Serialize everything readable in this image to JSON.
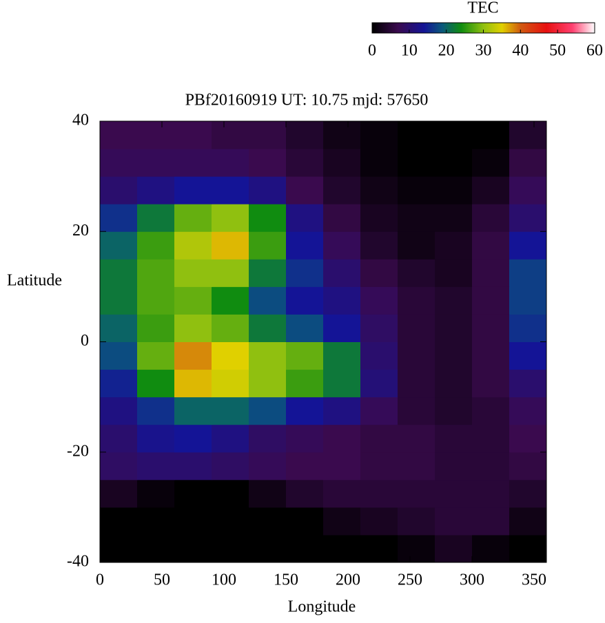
{
  "chart_data": {
    "type": "heatmap",
    "title": "PBf20160919  UT: 10.75  mjd: 57650",
    "xlabel": "Longitude",
    "ylabel": "Latitude",
    "xbins": [
      0,
      30,
      60,
      90,
      120,
      150,
      180,
      210,
      240,
      270,
      300,
      330,
      360
    ],
    "ybins": [
      -40,
      -35,
      -30,
      -25,
      -20,
      -15,
      -10,
      -5,
      0,
      5,
      10,
      15,
      20,
      25,
      30,
      35,
      40
    ],
    "z": [
      [
        0,
        0,
        0,
        0,
        0,
        0,
        0,
        0,
        1,
        3,
        1,
        0
      ],
      [
        0,
        0,
        0,
        0,
        0,
        0,
        2,
        3,
        4,
        5,
        5,
        2
      ],
      [
        3,
        1,
        0,
        0,
        2,
        4,
        5,
        5,
        5,
        5,
        5,
        4
      ],
      [
        9,
        10,
        10,
        9,
        8,
        7,
        7,
        6,
        6,
        5,
        5,
        6
      ],
      [
        10,
        13,
        14,
        12,
        9,
        8,
        7,
        6,
        6,
        5,
        5,
        7
      ],
      [
        12,
        16,
        20,
        20,
        18,
        14,
        12,
        8,
        5,
        4,
        5,
        8
      ],
      [
        15,
        24,
        36,
        34,
        30,
        26,
        22,
        11,
        5,
        4,
        6,
        10
      ],
      [
        18,
        28,
        38,
        35,
        30,
        28,
        22,
        10,
        5,
        4,
        6,
        14
      ],
      [
        20,
        26,
        30,
        28,
        22,
        18,
        14,
        9,
        5,
        4,
        6,
        16
      ],
      [
        22,
        27,
        28,
        24,
        18,
        14,
        12,
        8,
        5,
        4,
        6,
        17
      ],
      [
        22,
        27,
        30,
        30,
        22,
        16,
        10,
        6,
        4,
        3,
        6,
        17
      ],
      [
        20,
        26,
        32,
        36,
        26,
        14,
        8,
        4,
        2,
        3,
        6,
        14
      ],
      [
        16,
        22,
        28,
        30,
        24,
        12,
        6,
        3,
        2,
        2,
        5,
        10
      ],
      [
        10,
        12,
        14,
        14,
        12,
        7,
        4,
        2,
        1,
        1,
        3,
        8
      ],
      [
        8,
        8,
        8,
        8,
        7,
        5,
        3,
        1,
        0,
        0,
        1,
        6
      ],
      [
        7,
        7,
        7,
        6,
        6,
        4,
        2,
        1,
        0,
        0,
        0,
        4
      ]
    ],
    "xlim": [
      0,
      360
    ],
    "xticks": [
      0,
      50,
      100,
      150,
      200,
      250,
      300,
      350
    ],
    "ylim": [
      -40,
      40
    ],
    "yticks": [
      -40,
      -20,
      0,
      20,
      40
    ],
    "colorbar": {
      "title": "TEC",
      "clim": [
        0,
        60
      ],
      "ticks": [
        0,
        10,
        20,
        30,
        40,
        50,
        60
      ]
    },
    "colorscale": [
      {
        "value": 0,
        "color": "#000000"
      },
      {
        "value": 7,
        "color": "#3a0a4e"
      },
      {
        "value": 14,
        "color": "#141496"
      },
      {
        "value": 19,
        "color": "#0a5a7a"
      },
      {
        "value": 24,
        "color": "#108c10"
      },
      {
        "value": 30,
        "color": "#90c010"
      },
      {
        "value": 35,
        "color": "#e0d000"
      },
      {
        "value": 40,
        "color": "#d05a10"
      },
      {
        "value": 47,
        "color": "#e81010"
      },
      {
        "value": 54,
        "color": "#ff4070"
      },
      {
        "value": 60,
        "color": "#ffffff"
      }
    ]
  }
}
